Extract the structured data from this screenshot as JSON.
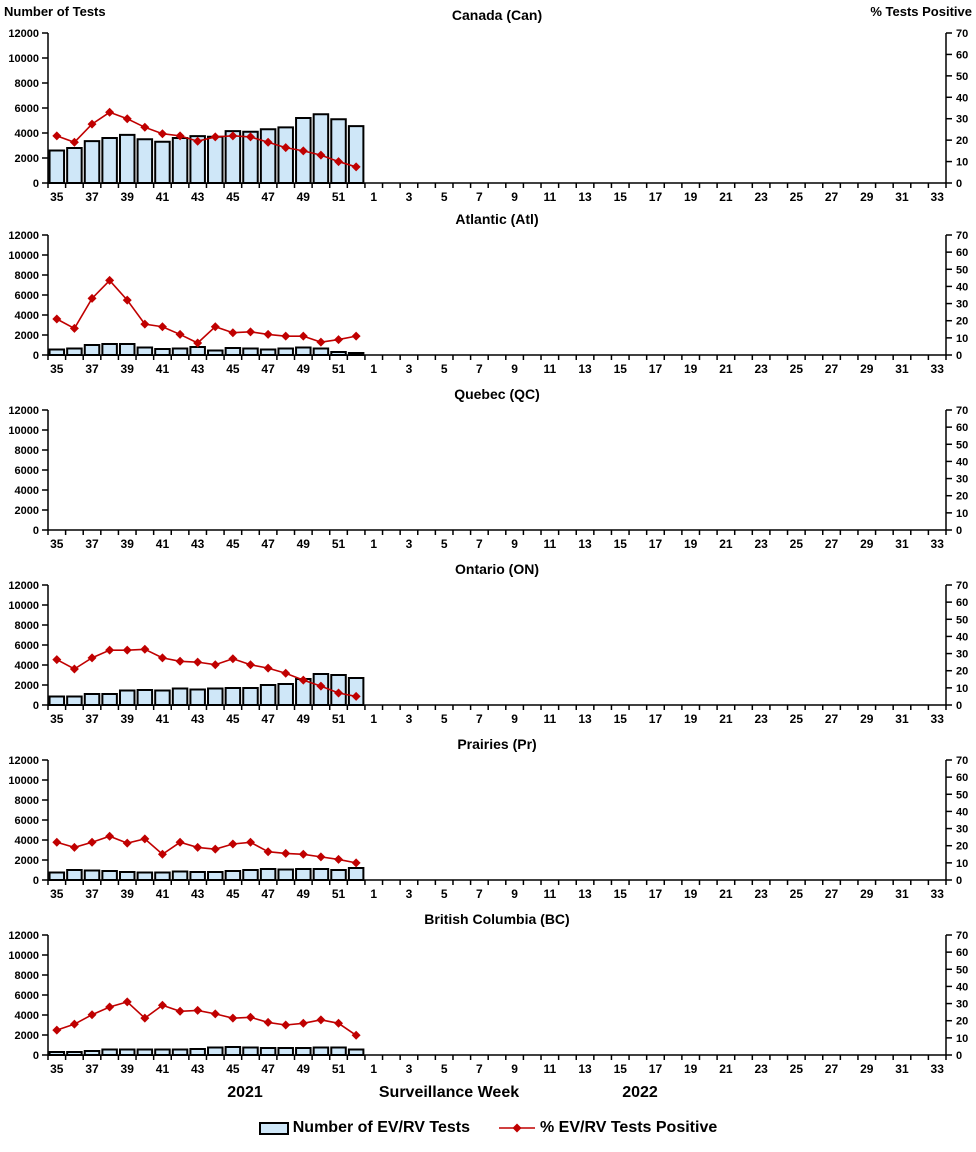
{
  "footer": {
    "year_left": "2021",
    "axis_title": "Surveillance Week",
    "year_right": "2022"
  },
  "legend": {
    "bar_label": "Number of EV/RV Tests",
    "line_label": "% EV/RV Tests Positive"
  },
  "colors": {
    "bar_fill": "#cfe7f8",
    "bar_stroke": "#000000",
    "line": "#c00000",
    "marker": "#c00000",
    "axis": "#000000"
  },
  "chart_data": {
    "type": "bar+line",
    "left_axis": {
      "title": "Number of Tests",
      "min": 0,
      "max": 12000,
      "step": 2000
    },
    "right_axis": {
      "title": "% Tests Positive",
      "min": 0,
      "max": 70,
      "step": 10
    },
    "x_axis": {
      "label": "Surveillance Week",
      "weeks_2021": [
        35,
        36,
        37,
        38,
        39,
        40,
        41,
        42,
        43,
        44,
        45,
        46,
        47,
        48,
        49,
        50,
        51,
        52
      ],
      "weeks_2022": [
        1,
        2,
        3,
        4,
        5,
        6,
        7,
        8,
        9,
        10,
        11,
        12,
        13,
        14,
        15,
        16,
        17,
        18,
        19,
        20,
        21,
        22,
        23,
        24,
        25,
        26,
        27,
        28,
        29,
        30,
        31,
        32,
        33
      ],
      "label_every_odd_week": true
    },
    "series": [
      {
        "name": "Number of EV/RV Tests",
        "type": "bar",
        "axis": "left"
      },
      {
        "name": "% EV/RV Tests Positive",
        "type": "line",
        "axis": "right"
      }
    ],
    "panels": [
      {
        "title": "Canada (Can)",
        "bars": [
          2600,
          2800,
          3350,
          3600,
          3850,
          3500,
          3300,
          3600,
          3750,
          3700,
          4150,
          4100,
          4300,
          4450,
          5200,
          5500,
          5100,
          4550
        ],
        "line_pct": [
          22,
          19,
          27.5,
          33,
          30,
          26,
          23,
          22,
          19.5,
          21.5,
          22,
          21.5,
          19,
          16.5,
          15,
          13,
          10,
          7.5
        ]
      },
      {
        "title": "Atlantic (Atl)",
        "bars": [
          550,
          650,
          1000,
          1100,
          1100,
          750,
          600,
          650,
          800,
          450,
          700,
          650,
          550,
          650,
          750,
          650,
          300,
          200
        ],
        "line_pct": [
          21,
          15.5,
          33,
          43.5,
          32,
          18,
          16.5,
          12,
          7,
          16.5,
          13,
          13.5,
          12,
          11,
          11,
          7.5,
          9,
          11
        ]
      },
      {
        "title": "Quebec (QC)",
        "bars": [],
        "line_pct": []
      },
      {
        "title": "Ontario (ON)",
        "bars": [
          850,
          850,
          1100,
          1100,
          1450,
          1500,
          1450,
          1650,
          1550,
          1650,
          1700,
          1700,
          2000,
          2100,
          2600,
          3100,
          3000,
          2700
        ],
        "line_pct": [
          26.5,
          21,
          27.5,
          32,
          32,
          32.5,
          27.5,
          25.5,
          25,
          23.5,
          27,
          23.5,
          21.5,
          18.5,
          14.5,
          11,
          7,
          5
        ]
      },
      {
        "title": "Prairies (Pr)",
        "bars": [
          750,
          1000,
          950,
          900,
          800,
          750,
          750,
          850,
          800,
          800,
          900,
          1000,
          1100,
          1050,
          1100,
          1100,
          1000,
          1200
        ],
        "line_pct": [
          22,
          19,
          22,
          25.5,
          21.5,
          24,
          15,
          22,
          19,
          18,
          21,
          22,
          16.5,
          15.5,
          15,
          13.5,
          12,
          10
        ]
      },
      {
        "title": "British Columbia (BC)",
        "bars": [
          300,
          300,
          400,
          550,
          550,
          550,
          550,
          550,
          600,
          750,
          800,
          750,
          700,
          700,
          700,
          750,
          750,
          550
        ],
        "line_pct": [
          14.5,
          18,
          23.5,
          28,
          31,
          21.5,
          29,
          25.5,
          26,
          24,
          21.5,
          22,
          19,
          17.5,
          18.5,
          20.5,
          18.5,
          11.5
        ]
      }
    ]
  }
}
